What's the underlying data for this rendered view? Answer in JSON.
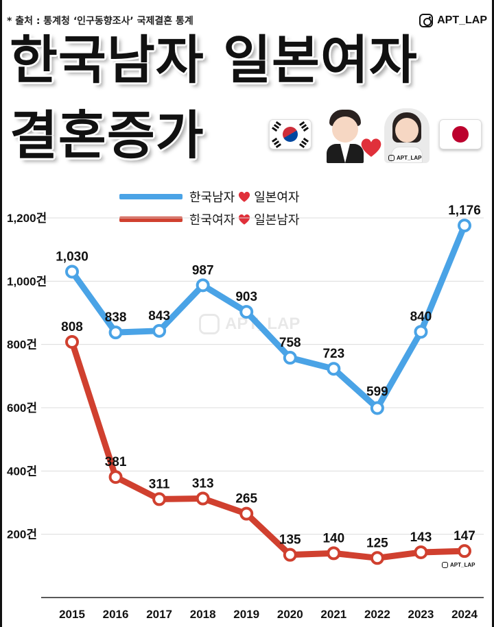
{
  "source_note": "* 출처 : 통계청 ‘인구동향조사’ 국제결혼 통계",
  "brand": {
    "label": "APT_LAP",
    "icon": "instagram-icon"
  },
  "title": {
    "line1": "한국남자 일본여자",
    "line2": "결혼증가"
  },
  "decor": {
    "flag_left": "korea-flag-icon",
    "flag_right": "japan-flag-icon",
    "couple": [
      "groom-icon",
      "heart-icon",
      "bride-icon"
    ],
    "couple_brand": "APT_LAP"
  },
  "watermark": "APT_LAP",
  "corner_brand": "APT_LAP",
  "colors": {
    "blue": "#4aa3e6",
    "red": "#d0402f",
    "heart": "#e0303a"
  },
  "chart_data": {
    "type": "line",
    "title": "",
    "xlabel": "",
    "ylabel": "",
    "categories": [
      "2015",
      "2016",
      "2017",
      "2018",
      "2019",
      "2020",
      "2021",
      "2022",
      "2023",
      "2024"
    ],
    "ylim": [
      0,
      1200
    ],
    "yticks": [
      200,
      400,
      600,
      800,
      1000,
      1200
    ],
    "ytick_labels": [
      "200건",
      "400건",
      "600건",
      "800건",
      "1,000건",
      "1,200건"
    ],
    "grid": true,
    "legend_position": "top",
    "series": [
      {
        "name": "한국남자 ❤ 일본여자",
        "name_parts": [
          "한국남자",
          "일본여자"
        ],
        "color": "#4aa3e6",
        "values": [
          1030,
          838,
          843,
          987,
          903,
          758,
          723,
          599,
          840,
          1176
        ],
        "labels": [
          "1,030",
          "838",
          "843",
          "987",
          "903",
          "758",
          "723",
          "599",
          "840",
          "1,176"
        ]
      },
      {
        "name": "한국여자 ❤ 일본남자",
        "name_parts": [
          "한국여자",
          "일본남자"
        ],
        "color": "#d0402f",
        "values": [
          808,
          381,
          311,
          313,
          265,
          135,
          140,
          125,
          143,
          147
        ],
        "labels": [
          "808",
          "381",
          "311",
          "313",
          "265",
          "135",
          "140",
          "125",
          "143",
          "147"
        ]
      }
    ]
  }
}
